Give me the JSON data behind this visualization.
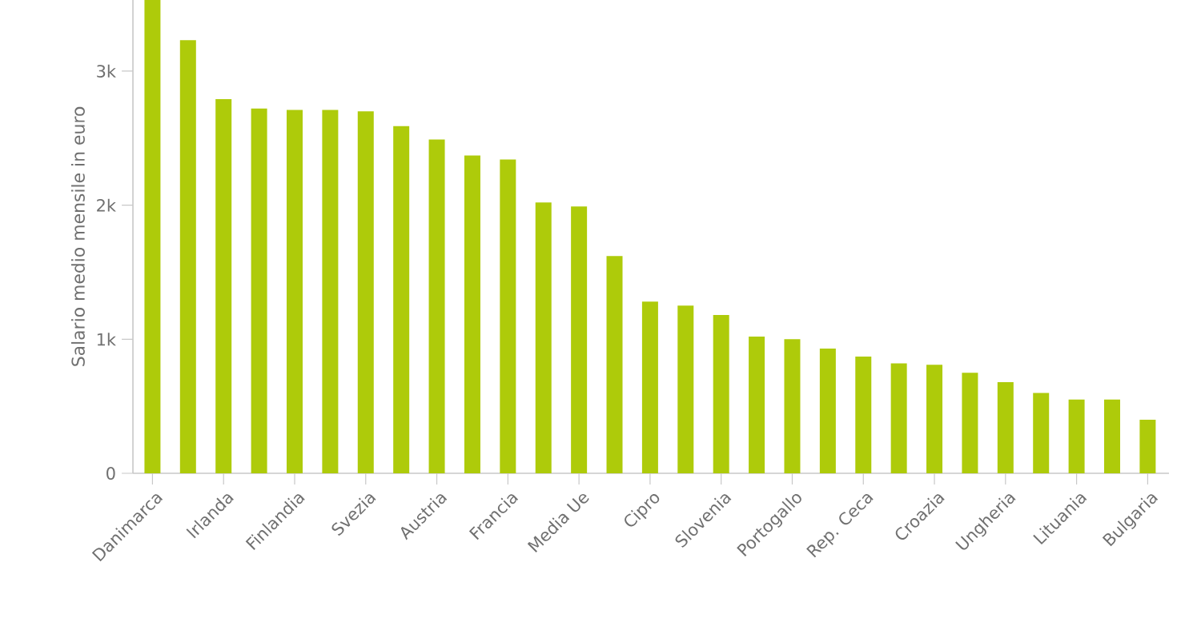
{
  "chart_data": {
    "type": "bar",
    "ylabel": "Salario medio mensile in euro",
    "categories": [
      "Danimarca",
      null,
      "Irlanda",
      null,
      "Finlandia",
      null,
      "Svezia",
      null,
      "Austria",
      null,
      "Francia",
      null,
      "Media Ue",
      null,
      "Cipro",
      null,
      "Slovenia",
      null,
      "Portogallo",
      null,
      "Rep. Ceca",
      null,
      "Croazia",
      null,
      "Ungheria",
      null,
      "Lituania",
      null,
      "Bulgaria"
    ],
    "values": [
      3530,
      3230,
      2790,
      2720,
      2710,
      2710,
      2700,
      2590,
      2490,
      2370,
      2340,
      2020,
      1990,
      1620,
      1280,
      1250,
      1180,
      1020,
      1000,
      930,
      870,
      820,
      810,
      750,
      680,
      600,
      550,
      550,
      400
    ],
    "color": "#aecb0a",
    "ylim": [
      0,
      3530
    ],
    "yticks": [
      0,
      {
        "value": 1000,
        "label": "1k"
      },
      {
        "value": 2000,
        "label": "2k"
      },
      {
        "value": 3000,
        "label": "3k"
      }
    ],
    "grid": false
  }
}
